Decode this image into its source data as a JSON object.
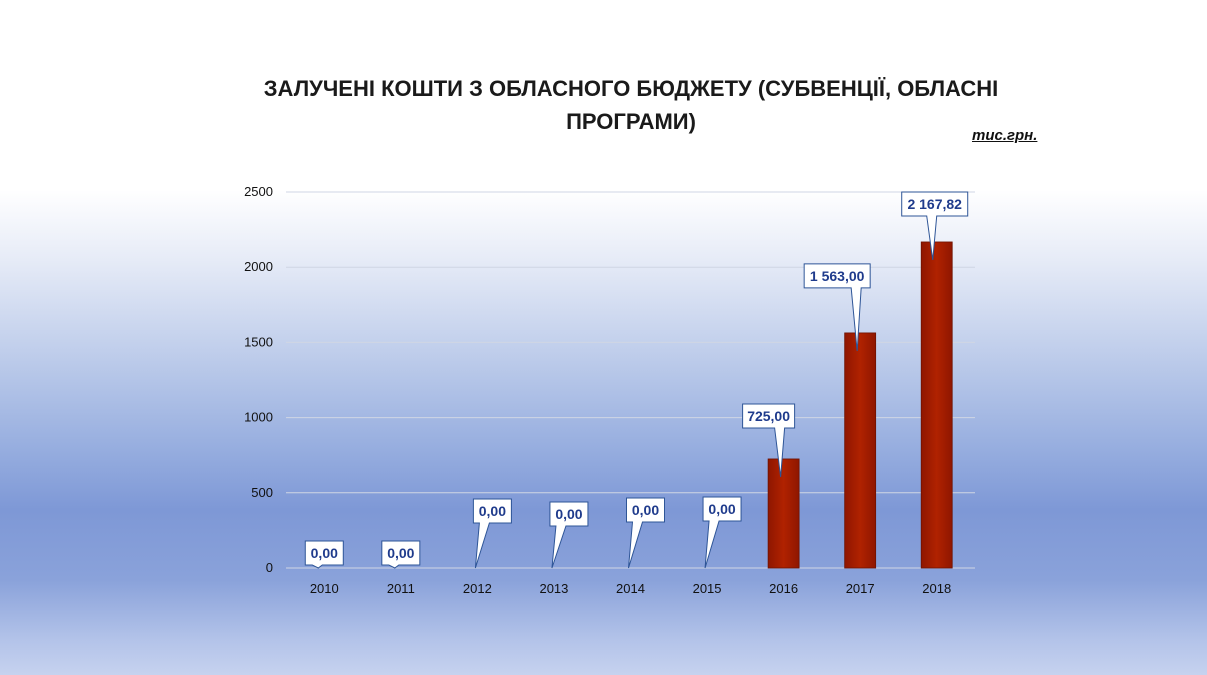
{
  "chart_data": {
    "type": "bar",
    "title": "ЗАЛУЧЕНІ КОШТИ З ОБЛАСНОГО БЮДЖЕТУ (СУБВЕНЦІЇ, ОБЛАСНІ ПРОГРАМИ)",
    "unit_label": "тис.грн.",
    "categories": [
      "2010",
      "2011",
      "2012",
      "2013",
      "2014",
      "2015",
      "2016",
      "2017",
      "2018"
    ],
    "values": [
      0,
      0,
      0,
      0,
      0,
      0,
      725,
      1563,
      2167.82
    ],
    "data_labels": [
      "0,00",
      "0,00",
      "0,00",
      "0,00",
      "0,00",
      "0,00",
      "725,00",
      "1 563,00",
      "2 167,82"
    ],
    "y_ticks": [
      "0",
      "500",
      "1000",
      "1500",
      "2000",
      "2500"
    ],
    "ylim": [
      0,
      2500
    ],
    "grid": true,
    "colors": {
      "bar": "#a51c00",
      "bar_edge": "#6e1200",
      "label_text": "#1f3b8c",
      "label_border": "#2e5597",
      "grid": "#d0d6e4"
    }
  }
}
